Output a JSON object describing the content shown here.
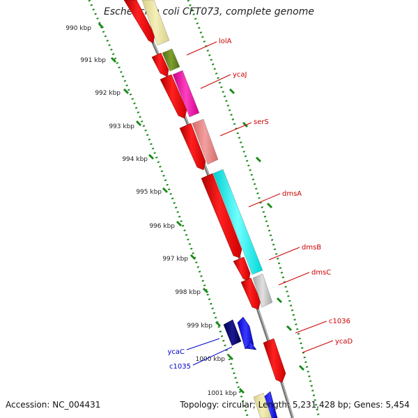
{
  "title": "Escherichia coli CFT073, complete genome",
  "footer": {
    "accession": "Accession: NC_004431",
    "summary": "Topology: circular; Length: 5,231,428 bp; Genes: 5,454"
  },
  "tick_labels": [
    "990 kbp",
    "991 kbp",
    "992 kbp",
    "993 kbp",
    "994 kbp",
    "995 kbp",
    "996 kbp",
    "997 kbp",
    "998 kbp",
    "999 kbp",
    "1000 kbp",
    "1001 kbp"
  ],
  "colors": {
    "cds": "#ff0000",
    "backbone": "#888888",
    "ruler": "#1a8a1a",
    "forward_label": "#cc0000",
    "reverse_label": "#0000cc"
  },
  "genes": [
    {
      "name": "lolA",
      "color": "#cc0000"
    },
    {
      "name": "ycaJ",
      "color": "#cc0000"
    },
    {
      "name": "serS",
      "color": "#cc0000"
    },
    {
      "name": "dmsA",
      "color": "#cc0000"
    },
    {
      "name": "dmsB",
      "color": "#cc0000"
    },
    {
      "name": "dmsC",
      "color": "#cc0000"
    },
    {
      "name": "c1036",
      "color": "#cc0000"
    },
    {
      "name": "ycaD",
      "color": "#cc0000"
    },
    {
      "name": "ycaC",
      "color": "#0000cc"
    },
    {
      "name": "c1035",
      "color": "#0000cc"
    }
  ]
}
